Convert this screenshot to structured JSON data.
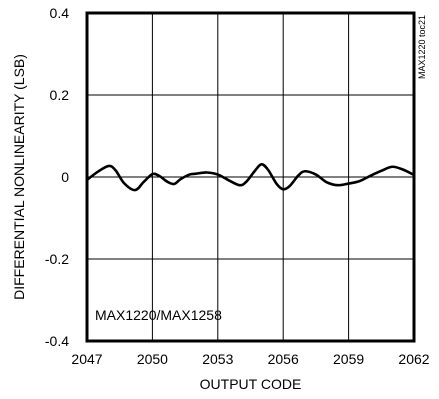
{
  "chart_data": {
    "type": "line",
    "title": "",
    "xlabel": "OUTPUT CODE",
    "ylabel": "DIFFERENTIAL NONLINEARITY (LSB)",
    "xlim": [
      2047,
      2062
    ],
    "ylim": [
      -0.4,
      0.4
    ],
    "x_ticks": [
      2047,
      2050,
      2053,
      2056,
      2059,
      2062
    ],
    "x_tick_labels": [
      "2047",
      "2050",
      "2053",
      "2056",
      "2059",
      "2062"
    ],
    "y_ticks": [
      -0.4,
      -0.2,
      0,
      0.2,
      0.4
    ],
    "y_tick_labels": [
      "-0.4",
      "-0.2",
      "0",
      "0.2",
      "0.4"
    ],
    "grid": true,
    "annotation": "MAX1220/MAX1258",
    "figure_code": "MAX1220 toc21",
    "series": [
      {
        "x": [
          2047.0,
          2047.5,
          2048.0,
          2048.3,
          2048.7,
          2049.2,
          2049.6,
          2050.0,
          2050.3,
          2050.7,
          2051.0,
          2051.3,
          2051.7,
          2052.0,
          2052.5,
          2053.0,
          2053.5,
          2054.0,
          2054.3,
          2054.7,
          2055.0,
          2055.3,
          2055.7,
          2056.0,
          2056.3,
          2056.7,
          2057.0,
          2057.5,
          2058.0,
          2058.5,
          2059.0,
          2059.5,
          2060.0,
          2060.5,
          2061.0,
          2061.5,
          2062.0
        ],
        "y": [
          -0.007,
          0.013,
          0.027,
          0.017,
          -0.015,
          -0.032,
          -0.012,
          0.007,
          0.003,
          -0.012,
          -0.017,
          -0.005,
          0.006,
          0.008,
          0.011,
          0.006,
          -0.008,
          -0.02,
          -0.012,
          0.015,
          0.031,
          0.018,
          -0.017,
          -0.03,
          -0.022,
          0.004,
          0.014,
          0.006,
          -0.013,
          -0.02,
          -0.016,
          -0.01,
          0.003,
          0.015,
          0.025,
          0.018,
          0.005
        ]
      }
    ]
  }
}
